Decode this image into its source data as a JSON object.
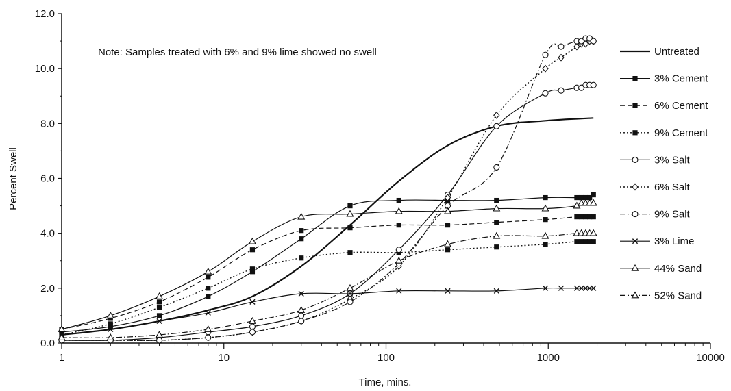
{
  "chart_data": {
    "type": "line",
    "x_scale": "log",
    "xlabel": "Time, mins.",
    "ylabel": "Percent Swell",
    "xlim": [
      1,
      10000
    ],
    "ylim": [
      0,
      12
    ],
    "x_ticks": [
      1,
      10,
      100,
      1000,
      10000
    ],
    "x_tick_labels": [
      "1",
      "10",
      "100",
      "1000",
      "10000"
    ],
    "y_ticks": [
      0,
      2,
      4,
      6,
      8,
      10,
      12
    ],
    "y_tick_labels": [
      "0.0",
      "2.0",
      "4.0",
      "6.0",
      "8.0",
      "10.0",
      "12.0"
    ],
    "grid": false,
    "legend_position": "right",
    "note": "Note: Samples treated with 6% and 9% lime showed no swell",
    "series": [
      {
        "name": "Untreated",
        "style": "solid-thick",
        "marker": "none",
        "x": [
          1,
          2,
          4,
          8,
          15,
          30,
          60,
          120,
          240,
          480,
          960,
          1900
        ],
        "y": [
          0.3,
          0.5,
          0.8,
          1.2,
          1.7,
          2.8,
          4.3,
          5.9,
          7.2,
          7.9,
          8.1,
          8.2
        ]
      },
      {
        "name": "3% Cement",
        "style": "solid",
        "marker": "filled-square",
        "x": [
          1,
          2,
          4,
          8,
          15,
          30,
          60,
          120,
          240,
          480,
          960,
          1500,
          1600,
          1700,
          1800,
          1900
        ],
        "y": [
          0.4,
          0.6,
          1.0,
          1.7,
          2.6,
          3.8,
          5.0,
          5.2,
          5.2,
          5.2,
          5.3,
          5.3,
          5.3,
          5.3,
          5.3,
          5.4
        ]
      },
      {
        "name": "6% Cement",
        "style": "dashed",
        "marker": "filled-square",
        "x": [
          1,
          2,
          4,
          8,
          15,
          30,
          60,
          120,
          240,
          480,
          960,
          1500,
          1600,
          1700,
          1800,
          1900
        ],
        "y": [
          0.5,
          0.9,
          1.5,
          2.4,
          3.4,
          4.1,
          4.2,
          4.3,
          4.3,
          4.4,
          4.5,
          4.6,
          4.6,
          4.6,
          4.6,
          4.6
        ]
      },
      {
        "name": "9% Cement",
        "style": "dotted",
        "marker": "filled-square",
        "x": [
          1,
          2,
          4,
          8,
          15,
          30,
          60,
          120,
          240,
          480,
          960,
          1500,
          1600,
          1700,
          1800,
          1900
        ],
        "y": [
          0.3,
          0.7,
          1.3,
          2.0,
          2.7,
          3.1,
          3.3,
          3.3,
          3.4,
          3.5,
          3.6,
          3.7,
          3.7,
          3.7,
          3.7,
          3.7
        ]
      },
      {
        "name": "3% Salt",
        "style": "solid",
        "marker": "open-circle",
        "x": [
          1,
          2,
          4,
          8,
          15,
          30,
          60,
          120,
          240,
          480,
          960,
          1200,
          1500,
          1600,
          1700,
          1800,
          1900
        ],
        "y": [
          0.1,
          0.1,
          0.2,
          0.4,
          0.6,
          1.0,
          1.8,
          3.4,
          5.4,
          7.9,
          9.1,
          9.2,
          9.3,
          9.3,
          9.4,
          9.4,
          9.4
        ]
      },
      {
        "name": "6% Salt",
        "style": "dotted",
        "marker": "open-diamond",
        "x": [
          1,
          2,
          4,
          8,
          15,
          30,
          60,
          120,
          240,
          480,
          960,
          1200,
          1500,
          1600,
          1700,
          1800,
          1900
        ],
        "y": [
          0.1,
          0.1,
          0.1,
          0.2,
          0.4,
          0.8,
          1.6,
          2.8,
          5.3,
          8.3,
          10.0,
          10.4,
          10.8,
          10.9,
          10.9,
          11.0,
          11.0
        ]
      },
      {
        "name": "9% Salt",
        "style": "dash-dot",
        "marker": "open-circle",
        "x": [
          1,
          2,
          4,
          8,
          15,
          30,
          60,
          120,
          240,
          480,
          960,
          1200,
          1500,
          1600,
          1700,
          1800,
          1900
        ],
        "y": [
          0.1,
          0.1,
          0.1,
          0.2,
          0.4,
          0.8,
          1.5,
          2.9,
          5.0,
          6.4,
          10.5,
          10.8,
          11.0,
          11.0,
          11.1,
          11.1,
          11.0
        ]
      },
      {
        "name": "3% Lime",
        "style": "solid",
        "marker": "x",
        "x": [
          1,
          2,
          4,
          8,
          15,
          30,
          60,
          120,
          240,
          480,
          960,
          1200,
          1500,
          1600,
          1700,
          1800,
          1900
        ],
        "y": [
          0.3,
          0.5,
          0.8,
          1.1,
          1.5,
          1.8,
          1.8,
          1.9,
          1.9,
          1.9,
          2.0,
          2.0,
          2.0,
          2.0,
          2.0,
          2.0,
          2.0
        ]
      },
      {
        "name": "44% Sand",
        "style": "solid",
        "marker": "open-triangle",
        "x": [
          1,
          2,
          4,
          8,
          15,
          30,
          60,
          120,
          240,
          480,
          960,
          1500,
          1600,
          1700,
          1800,
          1900
        ],
        "y": [
          0.5,
          1.0,
          1.7,
          2.6,
          3.7,
          4.6,
          4.7,
          4.8,
          4.8,
          4.9,
          4.9,
          5.0,
          5.1,
          5.1,
          5.1,
          5.1
        ]
      },
      {
        "name": "52% Sand",
        "style": "dash-dot",
        "marker": "open-triangle",
        "x": [
          1,
          2,
          4,
          8,
          15,
          30,
          60,
          120,
          240,
          480,
          960,
          1500,
          1600,
          1700,
          1800,
          1900
        ],
        "y": [
          0.2,
          0.2,
          0.3,
          0.5,
          0.8,
          1.2,
          2.0,
          3.0,
          3.6,
          3.9,
          3.9,
          4.0,
          4.0,
          4.0,
          4.0,
          4.0
        ]
      }
    ]
  }
}
